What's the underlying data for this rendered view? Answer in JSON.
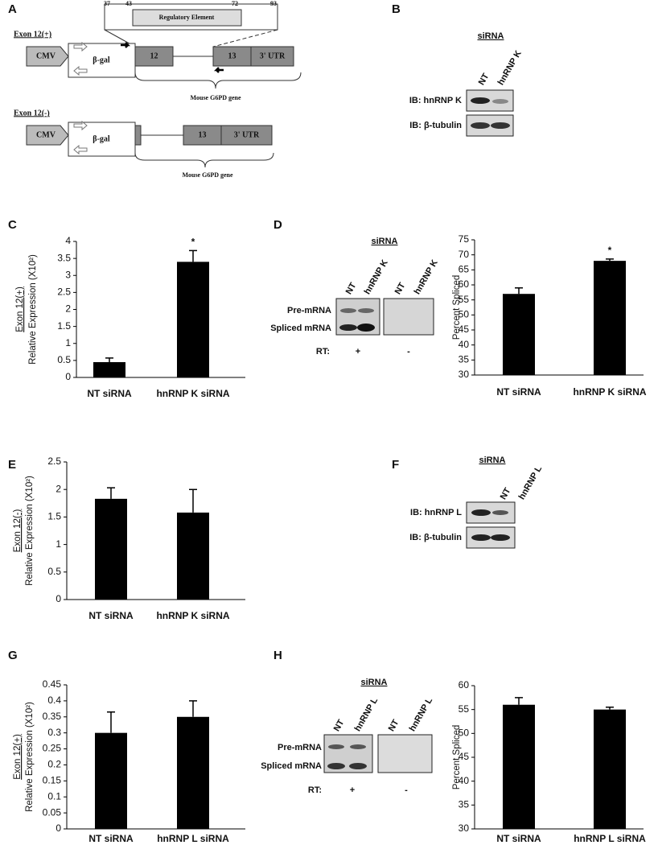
{
  "panel_labels": [
    "A",
    "B",
    "C",
    "D",
    "E",
    "F",
    "G",
    "H"
  ],
  "construct": {
    "positions": [
      "37",
      "43",
      "72",
      "93"
    ],
    "regulatory_element": "Regulatory Element",
    "constructs": [
      {
        "label": "Exon 12(+)",
        "promoter": "CMV",
        "reporter": "β-gal",
        "exons": [
          "12",
          "13",
          "3' UTR"
        ],
        "gene": "Mouse G6PD gene"
      },
      {
        "label": "Exon 12(-)",
        "promoter": "CMV",
        "reporter": "β-gal",
        "exons": [
          "13",
          "3' UTR"
        ],
        "gene": "Mouse G6PD gene"
      }
    ]
  },
  "blots": [
    {
      "header": "siRNA",
      "lanes": [
        "NT",
        "hnRNP K"
      ],
      "rows": [
        "IB: hnRNP K",
        "IB: β-tubulin"
      ]
    },
    {
      "header": "siRNA",
      "lanes": [
        "NT",
        "hnRNP K",
        "NT",
        "hnRNP K"
      ],
      "rows": [
        "Pre-mRNA",
        "Spliced mRNA"
      ],
      "rt_label": "RT:",
      "rt": [
        "+",
        "-"
      ]
    },
    {
      "header": "siRNA",
      "lanes": [
        "NT",
        "hnRNP L"
      ],
      "rows": [
        "IB: hnRNP L",
        "IB: β-tubulin"
      ]
    },
    {
      "header": "siRNA",
      "lanes": [
        "NT",
        "hnRNP L",
        "NT",
        "hnRNP L"
      ],
      "rows": [
        "Pre-mRNA",
        "Spliced mRNA"
      ],
      "rt_label": "RT:",
      "rt": [
        "+",
        "-"
      ]
    }
  ],
  "chart_data": [
    {
      "type": "bar",
      "ylabel": [
        "Exon 12(+)",
        "Relative Expression (X10²)"
      ],
      "categories": [
        "NT siRNA",
        "hnRNP K siRNA"
      ],
      "values": [
        0.45,
        3.4
      ],
      "errors": [
        0.12,
        0.33
      ],
      "significance": [
        null,
        "*"
      ],
      "color": "#000000",
      "ylim": [
        0,
        4
      ],
      "yticks": [
        0,
        0.5,
        1,
        1.5,
        2,
        2.5,
        3,
        3.5,
        4
      ]
    },
    {
      "type": "bar",
      "ylabel": [
        "Percent Spliced"
      ],
      "categories": [
        "NT siRNA",
        "hnRNP K siRNA"
      ],
      "values": [
        57,
        68
      ],
      "errors": [
        2,
        0.6
      ],
      "significance": [
        null,
        "*"
      ],
      "color": "#000000",
      "ylim": [
        30,
        75
      ],
      "yticks": [
        30,
        35,
        40,
        45,
        50,
        55,
        60,
        65,
        70,
        75
      ]
    },
    {
      "type": "bar",
      "ylabel": [
        "Exon 12(-)",
        "Relative Expression (X10²)"
      ],
      "categories": [
        "NT siRNA",
        "hnRNP K siRNA"
      ],
      "values": [
        1.83,
        1.58
      ],
      "errors": [
        0.2,
        0.42
      ],
      "color": "#000000",
      "ylim": [
        0,
        2.5
      ],
      "yticks": [
        0,
        0.5,
        1,
        1.5,
        2,
        2.5
      ]
    },
    {
      "type": "bar",
      "ylabel": [
        "Exon 12(+)",
        "Relative Expression (X10²)"
      ],
      "categories": [
        "NT siRNA",
        "hnRNP L siRNA"
      ],
      "values": [
        0.3,
        0.35
      ],
      "errors": [
        0.065,
        0.05
      ],
      "color": "#000000",
      "ylim": [
        0,
        0.45
      ],
      "yticks": [
        0,
        0.05,
        0.1,
        0.15,
        0.2,
        0.25,
        0.3,
        0.35,
        0.4,
        0.45
      ]
    },
    {
      "type": "bar",
      "ylabel": [
        "Percent Spliced"
      ],
      "categories": [
        "NT siRNA",
        "hnRNP L siRNA"
      ],
      "values": [
        56,
        55
      ],
      "errors": [
        1.5,
        0.5
      ],
      "color": "#000000",
      "ylim": [
        30,
        60
      ],
      "yticks": [
        30,
        35,
        40,
        45,
        50,
        55,
        60
      ]
    }
  ]
}
